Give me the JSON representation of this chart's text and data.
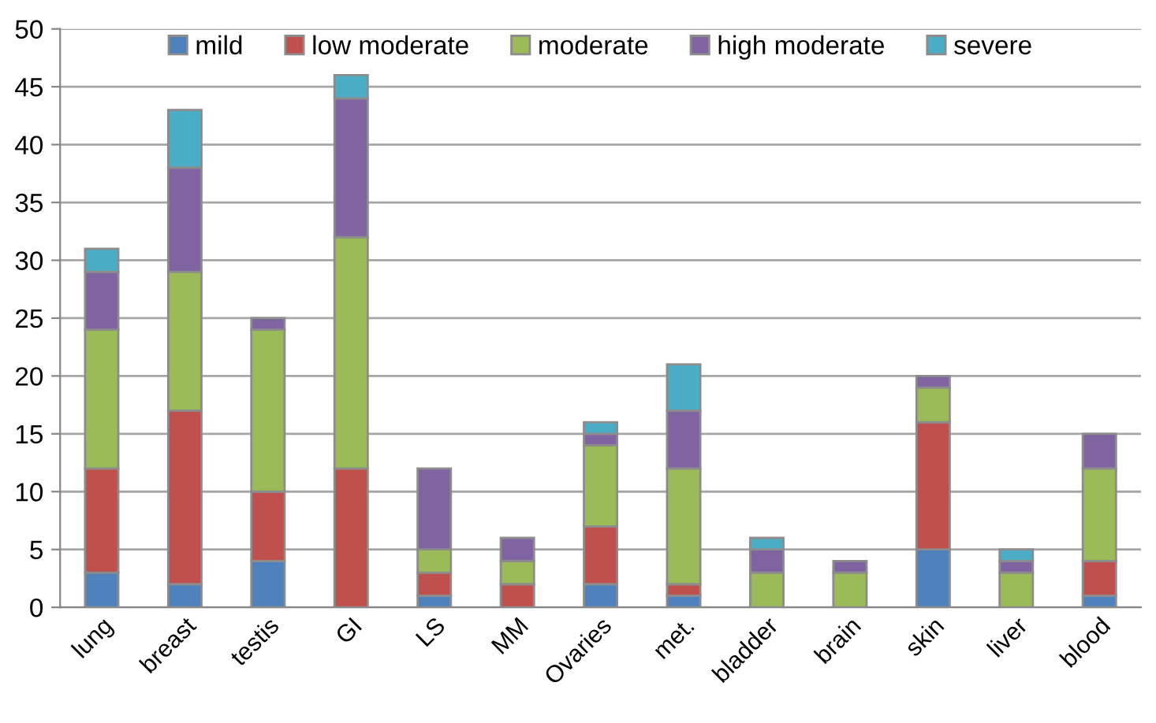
{
  "chart_data": {
    "type": "bar",
    "stacked": true,
    "categories": [
      "lung",
      "breast",
      "testis",
      "GI",
      "LS",
      "MM",
      "Ovaries",
      "met.",
      "bladder",
      "brain",
      "skin",
      "liver",
      "blood"
    ],
    "series": [
      {
        "name": "mild",
        "color": "#4f81bd",
        "values": [
          3,
          2,
          4,
          0,
          1,
          0,
          2,
          1,
          0,
          0,
          5,
          0,
          1
        ]
      },
      {
        "name": "low moderate",
        "color": "#c0504d",
        "values": [
          9,
          15,
          6,
          12,
          2,
          2,
          5,
          1,
          0,
          0,
          11,
          0,
          3
        ]
      },
      {
        "name": "moderate",
        "color": "#9bbb59",
        "values": [
          12,
          12,
          14,
          20,
          2,
          2,
          7,
          10,
          3,
          3,
          3,
          3,
          8
        ]
      },
      {
        "name": "high moderate",
        "color": "#8064a2",
        "values": [
          5,
          9,
          1,
          12,
          7,
          2,
          1,
          5,
          2,
          1,
          1,
          1,
          3
        ]
      },
      {
        "name": "severe",
        "color": "#4bacc6",
        "values": [
          2,
          5,
          0,
          2,
          0,
          0,
          1,
          4,
          1,
          0,
          0,
          1,
          0
        ]
      }
    ],
    "ylim": [
      0,
      50
    ],
    "yticks": [
      0,
      5,
      10,
      15,
      20,
      25,
      30,
      35,
      40,
      45,
      50
    ],
    "grid": "y",
    "legend": "top"
  }
}
